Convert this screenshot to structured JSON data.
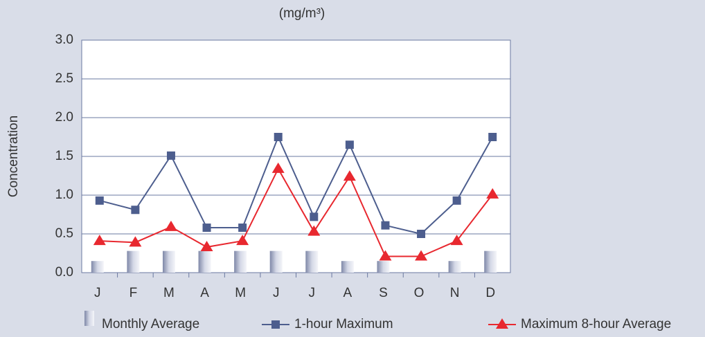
{
  "chart_data": {
    "type": "line",
    "title": "(mg/m³)",
    "y_label": "Concentration",
    "categories": [
      "J",
      "F",
      "M",
      "A",
      "M",
      "J",
      "J",
      "A",
      "S",
      "O",
      "N",
      "D"
    ],
    "series": [
      {
        "name": "Monthly Average",
        "type": "bar",
        "color": "#a3abc6",
        "values": [
          0.15,
          0.28,
          0.28,
          0.28,
          0.28,
          0.28,
          0.28,
          0.15,
          0.15,
          0,
          0.15,
          0.28
        ]
      },
      {
        "name": "1-hour Maximum",
        "type": "line",
        "marker": "square",
        "color": "#4d5e8e",
        "values": [
          0.93,
          0.81,
          1.51,
          0.58,
          0.58,
          1.75,
          0.72,
          1.65,
          0.61,
          0.5,
          0.93,
          1.75
        ]
      },
      {
        "name": "Maximum 8-hour Average",
        "type": "line",
        "marker": "triangle",
        "color": "#e8282f",
        "values": [
          0.41,
          0.39,
          0.59,
          0.33,
          0.41,
          1.34,
          0.53,
          1.24,
          0.21,
          0.21,
          0.41,
          1.01
        ]
      }
    ],
    "ylim": [
      0,
      3
    ],
    "yticks": [
      {
        "value": 0,
        "label": "0.0"
      },
      {
        "value": 0.5,
        "label": "0.5"
      },
      {
        "value": 1,
        "label": "1.0"
      },
      {
        "value": 1.5,
        "label": "1.5"
      },
      {
        "value": 2,
        "label": "2.0"
      },
      {
        "value": 2.5,
        "label": "2.5"
      },
      {
        "value": 3,
        "label": "3.0"
      }
    ],
    "grid": true
  }
}
